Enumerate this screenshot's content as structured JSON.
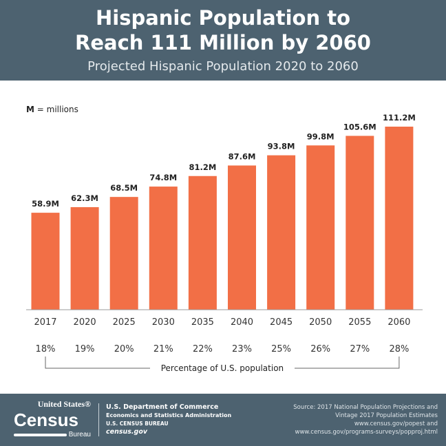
{
  "header": {
    "title_line1": "Hispanic Population to",
    "title_line2": "Reach 111 Million by 2060",
    "subtitle": "Projected Hispanic Population 2020 to 2060"
  },
  "legend": {
    "key": "M",
    "text": " = millions"
  },
  "chart_data": {
    "type": "bar",
    "title": "Hispanic Population to Reach 111 Million by 2060",
    "subtitle": "Projected Hispanic Population 2020 to 2060",
    "categories": [
      "2017",
      "2020",
      "2025",
      "2030",
      "2035",
      "2040",
      "2045",
      "2050",
      "2055",
      "2060"
    ],
    "values": [
      58.9,
      62.3,
      68.5,
      74.8,
      81.2,
      87.6,
      93.8,
      99.8,
      105.6,
      111.2
    ],
    "data_labels": [
      "58.9M",
      "62.3M",
      "68.5M",
      "74.8M",
      "81.2M",
      "87.6M",
      "93.8M",
      "99.8M",
      "105.6M",
      "111.2M"
    ],
    "percent_labels": [
      "18%",
      "19%",
      "20%",
      "21%",
      "22%",
      "23%",
      "25%",
      "26%",
      "27%",
      "28%"
    ],
    "percent_caption": "Percentage of U.S. population",
    "ylim": [
      0,
      111.2
    ],
    "grid": false,
    "bar_color": "#f26f46"
  },
  "footer": {
    "logo_top": "United States®",
    "logo_main": "Census",
    "logo_bottom": "Bureau",
    "dept": "U.S. Department of Commerce",
    "esa": "Economics and Statistics Administration",
    "bureau": "U.S. CENSUS BUREAU",
    "site": "census.gov",
    "source": [
      "Source: 2017 National Population Projections and",
      "Vintage 2017 Population Estimates",
      "www.census.gov/popest and",
      "www.census.gov/programs-surveys/popproj.html"
    ]
  },
  "colors": {
    "header": "#4d6270",
    "bar": "#f26f46"
  }
}
